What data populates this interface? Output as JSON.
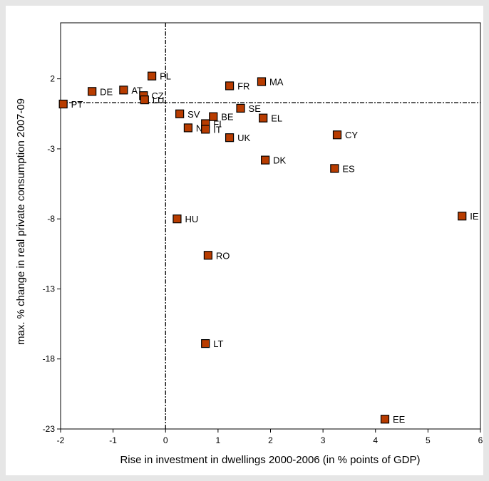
{
  "chart_data": {
    "type": "scatter",
    "title": "",
    "xlabel": "Rise in investment in dwellings 2000-2006 (in % points of GDP)",
    "ylabel": "max. % change in real private consumption 2007-09",
    "xlim": [
      -2,
      6
    ],
    "ylim": [
      -23,
      6
    ],
    "xticks": [
      -2,
      -1,
      0,
      1,
      2,
      3,
      4,
      5,
      6
    ],
    "yticks": [
      2,
      -3,
      -8,
      -13,
      -18,
      -23
    ],
    "grid": false,
    "legend": "none",
    "reference_lines": {
      "x": 0,
      "y": 0.3
    },
    "marker": {
      "shape": "square",
      "fill": "#b83c00",
      "stroke": "#000000"
    },
    "points": [
      {
        "label": "PL",
        "x": -0.26,
        "y": 2.2
      },
      {
        "label": "DE",
        "x": -1.4,
        "y": 1.1
      },
      {
        "label": "AT",
        "x": -0.8,
        "y": 1.2
      },
      {
        "label": "CZ",
        "x": -0.42,
        "y": 0.8
      },
      {
        "label": "LU",
        "x": -0.4,
        "y": 0.5
      },
      {
        "label": "PT",
        "x": -1.95,
        "y": 0.2
      },
      {
        "label": "FR",
        "x": 1.22,
        "y": 1.5
      },
      {
        "label": "MA",
        "x": 1.83,
        "y": 1.8
      },
      {
        "label": "SV",
        "x": 0.27,
        "y": -0.5
      },
      {
        "label": "BE",
        "x": 0.91,
        "y": -0.7
      },
      {
        "label": "SE",
        "x": 1.43,
        "y": -0.1
      },
      {
        "label": "EL",
        "x": 1.86,
        "y": -0.8
      },
      {
        "label": "FI",
        "x": 0.76,
        "y": -1.2
      },
      {
        "label": "NL",
        "x": 0.43,
        "y": -1.5
      },
      {
        "label": "IT",
        "x": 0.76,
        "y": -1.6
      },
      {
        "label": "UK",
        "x": 1.22,
        "y": -2.2
      },
      {
        "label": "CY",
        "x": 3.27,
        "y": -2.0
      },
      {
        "label": "DK",
        "x": 1.9,
        "y": -3.8
      },
      {
        "label": "ES",
        "x": 3.22,
        "y": -4.4
      },
      {
        "label": "IE",
        "x": 5.65,
        "y": -7.8
      },
      {
        "label": "HU",
        "x": 0.22,
        "y": -8.0
      },
      {
        "label": "RO",
        "x": 0.81,
        "y": -10.6
      },
      {
        "label": "LT",
        "x": 0.76,
        "y": -16.9
      },
      {
        "label": "EE",
        "x": 4.18,
        "y": -22.3
      }
    ]
  }
}
